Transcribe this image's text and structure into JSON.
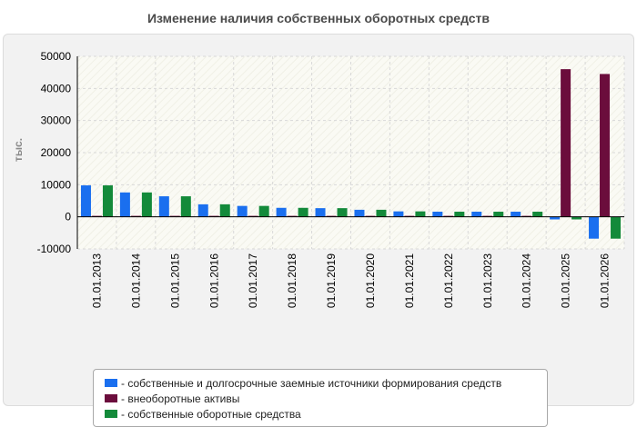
{
  "chart_data": {
    "type": "bar",
    "title": "Изменение наличия собственных оборотных средств",
    "ylabel": "тыс.",
    "xlabel": "",
    "ylim": [
      -10000,
      50000
    ],
    "yticks": [
      -10000,
      0,
      10000,
      20000,
      30000,
      40000,
      50000
    ],
    "grid": true,
    "legend_position": "bottom",
    "categories": [
      "01.01.2013",
      "01.01.2014",
      "01.01.2015",
      "01.01.2016",
      "01.01.2017",
      "01.01.2018",
      "01.01.2019",
      "01.01.2020",
      "01.01.2021",
      "01.01.2022",
      "01.01.2023",
      "01.01.2024",
      "01.01.2025",
      "01.01.2026"
    ],
    "series": [
      {
        "name": "- собственные и долгосрочные заемные источники формирования средств",
        "color": "#1a6fef",
        "values": [
          9800,
          7600,
          6400,
          3900,
          3400,
          2800,
          2700,
          2200,
          1700,
          1600,
          1600,
          1600,
          -800,
          -6800
        ]
      },
      {
        "name": "- внеоборотные активы",
        "color": "#6b0d3c",
        "values": [
          300,
          300,
          300,
          300,
          300,
          300,
          300,
          300,
          300,
          300,
          300,
          300,
          46000,
          44500
        ]
      },
      {
        "name": "- собственные оборотные средства",
        "color": "#138a3a",
        "values": [
          9800,
          7600,
          6400,
          3900,
          3400,
          2800,
          2700,
          2200,
          1700,
          1600,
          1600,
          1600,
          -800,
          -6800
        ]
      }
    ]
  }
}
